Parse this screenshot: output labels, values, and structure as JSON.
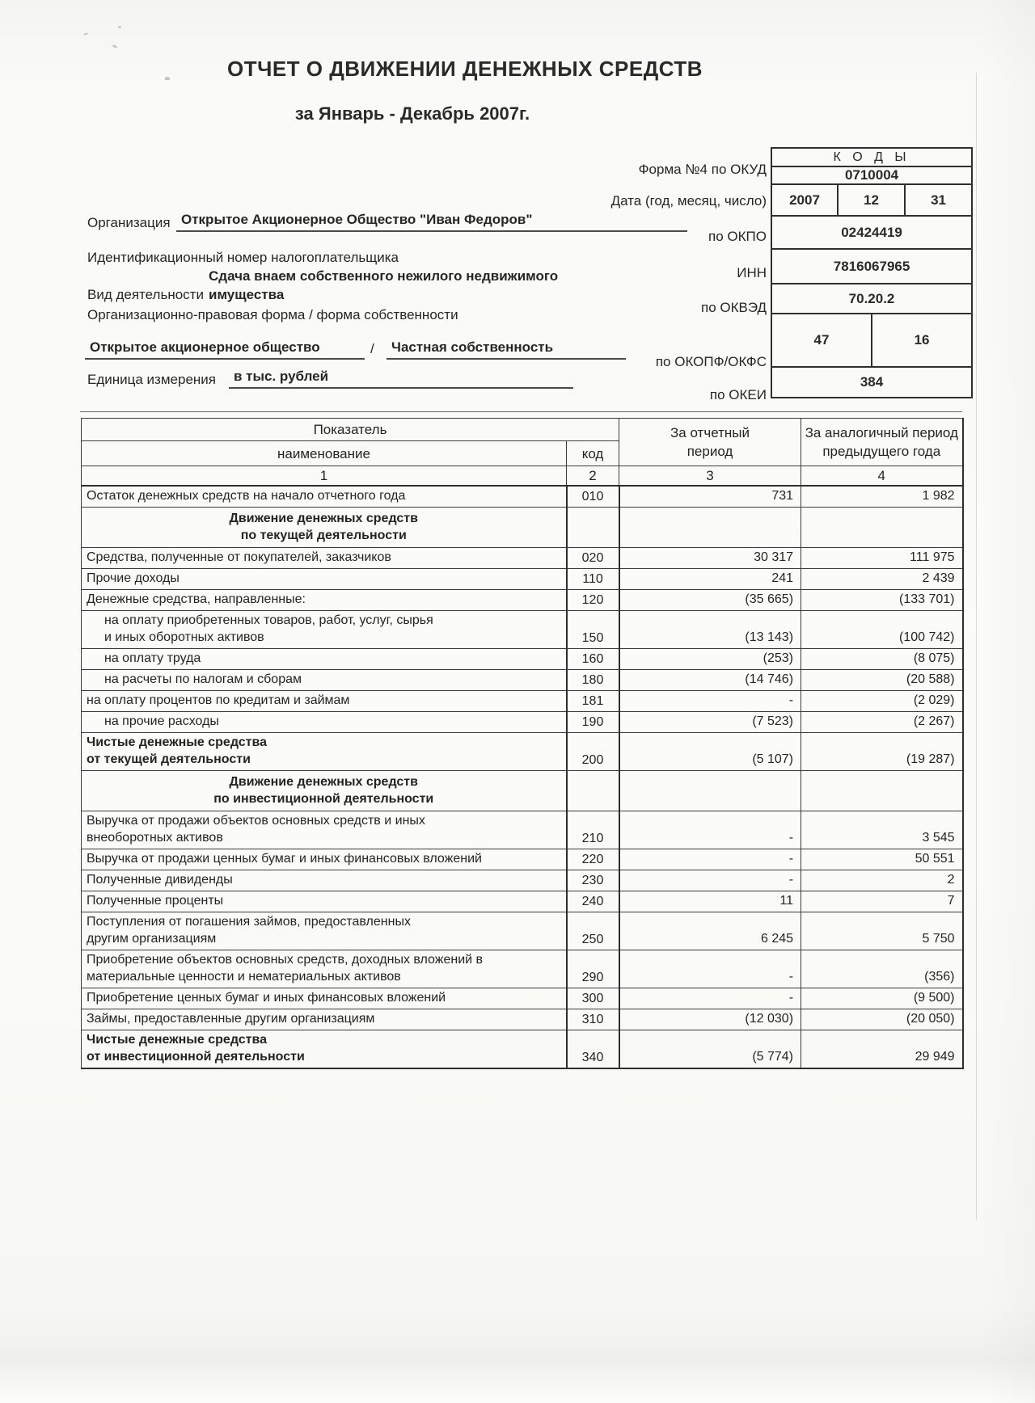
{
  "page": {
    "title": "ОТЧЕТ О ДВИЖЕНИИ ДЕНЕЖНЫХ СРЕДСТВ",
    "subtitle": "за Январь - Декабрь 2007г."
  },
  "form_labels": {
    "okud": "Форма №4 по ОКУД",
    "date": "Дата (год, месяц, число)",
    "okpo": "по ОКПО",
    "inn": "ИНН",
    "okved": "по ОКВЭД",
    "okopf_okfs": "по ОКОПФ/ОКФС",
    "okei": "по ОКЕИ"
  },
  "codes": {
    "header": "К О Д Ы",
    "okud": "0710004",
    "year": "2007",
    "month": "12",
    "day": "31",
    "okpo": "02424419",
    "inn": "7816067965",
    "okved": "70.20.2",
    "okopf": "47",
    "okfs": "16",
    "okei": "384"
  },
  "org": {
    "label": "Организация",
    "value": "Открытое Акционерное Общество \"Иван Федоров\"",
    "taxpayer_caption": "Идентификационный номер налогоплательщика",
    "activity_label": "Вид деятельности",
    "activity_line1": "Сдача внаем собственного нежилого недвижимого",
    "activity_line2": "имущества",
    "legal_caption": "Организационно-правовая форма / форма собственности",
    "legal_form": "Открытое акционерное общество",
    "slash": "/",
    "ownership": "Частная собственность",
    "unit_label": "Единица измерения",
    "unit_value": "в тыс. рублей"
  },
  "table": {
    "header": {
      "indicator": "Показатель",
      "name": "наименование",
      "code": "код",
      "col3": "За отчетный\nпериод",
      "col4": "За аналогичный период\nпредыдущего года",
      "n1": "1",
      "n2": "2",
      "n3": "3",
      "n4": "4"
    },
    "rows": [
      {
        "type": "data",
        "name": "Остаток денежных средств на начало отчетного года",
        "code": "010",
        "col3": "731",
        "col4": "1 982"
      },
      {
        "type": "section",
        "name": "Движение денежных средств\nпо текущей деятельности"
      },
      {
        "type": "data",
        "name": "Средства, полученные от покупателей, заказчиков",
        "code": "020",
        "col3": "30 317",
        "col4": "111 975"
      },
      {
        "type": "data",
        "name": "Прочие доходы",
        "code": "110",
        "col3": "241",
        "col4": "2 439"
      },
      {
        "type": "data",
        "name": "Денежные средства, направленные:",
        "code": "120",
        "col3": "(35 665)",
        "col4": "(133 701)"
      },
      {
        "type": "data",
        "indent": true,
        "name": "на оплату приобретенных товаров, работ, услуг, сырья\nи иных оборотных активов",
        "code": "150",
        "col3": "(13 143)",
        "col4": "(100 742)"
      },
      {
        "type": "data",
        "indent": true,
        "name": "на оплату труда",
        "code": "160",
        "col3": "(253)",
        "col4": "(8 075)"
      },
      {
        "type": "data",
        "indent": true,
        "name": "на расчеты по налогам и сборам",
        "code": "180",
        "col3": "(14 746)",
        "col4": "(20 588)"
      },
      {
        "type": "data",
        "name": "на оплату процентов по кредитам и займам",
        "code": "181",
        "col3": "-",
        "col4": "(2 029)"
      },
      {
        "type": "data",
        "indent": true,
        "name": "на прочие расходы",
        "code": "190",
        "col3": "(7 523)",
        "col4": "(2 267)"
      },
      {
        "type": "data",
        "bold": true,
        "name": "Чистые денежные средства\nот текущей деятельности",
        "code": "200",
        "col3": "(5 107)",
        "col4": "(19 287)"
      },
      {
        "type": "section",
        "name": "Движение денежных средств\nпо инвестиционной деятельности"
      },
      {
        "type": "data",
        "name": "Выручка от продажи объектов основных средств и иных\nвнеоборотных активов",
        "code": "210",
        "col3": "-",
        "col4": "3 545"
      },
      {
        "type": "data",
        "name": "Выручка от продажи ценных бумаг и иных финансовых вложений",
        "code": "220",
        "col3": "-",
        "col4": "50 551"
      },
      {
        "type": "data",
        "name": "Полученные дивиденды",
        "code": "230",
        "col3": "-",
        "col4": "2"
      },
      {
        "type": "data",
        "name": "Полученные проценты",
        "code": "240",
        "col3": "11",
        "col4": "7"
      },
      {
        "type": "data",
        "name": "Поступления от погашения займов, предоставленных\nдругим организациям",
        "code": "250",
        "col3": "6 245",
        "col4": "5 750"
      },
      {
        "type": "data",
        "name": "Приобретение объектов основных средств, доходных вложений в\nматериальные ценности и нематериальных активов",
        "code": "290",
        "col3": "-",
        "col4": "(356)"
      },
      {
        "type": "data",
        "name": "Приобретение ценных бумаг и иных финансовых вложений",
        "code": "300",
        "col3": "-",
        "col4": "(9 500)"
      },
      {
        "type": "data",
        "name": "Займы, предоставленные другим организациям",
        "code": "310",
        "col3": "(12 030)",
        "col4": "(20 050)"
      },
      {
        "type": "data",
        "bold": true,
        "name": "Чистые денежные средства\nот инвестиционной деятельности",
        "code": "340",
        "col3": "(5 774)",
        "col4": "29 949"
      }
    ]
  }
}
